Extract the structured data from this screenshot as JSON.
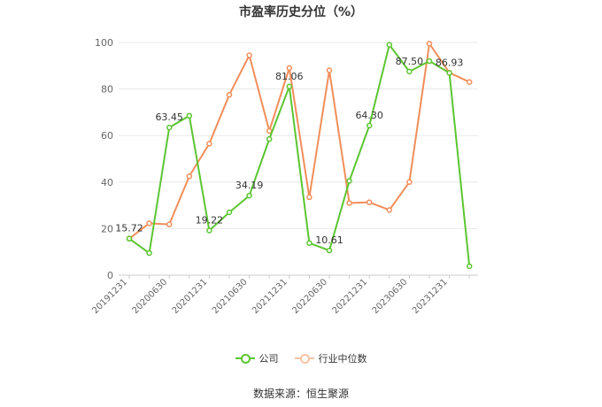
{
  "chart_data": {
    "type": "line",
    "title": "市盈率历史分位（%）",
    "categories": [
      "20191231",
      "",
      "20200630",
      "",
      "20201231",
      "",
      "20210630",
      "",
      "20211231",
      "",
      "20220630",
      "",
      "20221231",
      "",
      "20230630",
      "",
      "20231231",
      ""
    ],
    "ylim": [
      0,
      100
    ],
    "yticks": [
      0,
      20,
      40,
      60,
      80,
      100
    ],
    "grid": true,
    "legend_position": "bottom-center",
    "series": [
      {
        "name": "公司",
        "color": "#5cc532",
        "values": [
          15.72,
          9.5,
          63.45,
          68.5,
          19.22,
          27,
          34.19,
          58.5,
          81.06,
          13.8,
          10.61,
          40.5,
          64.3,
          99,
          87.5,
          92,
          86.93,
          3.8
        ],
        "labels": [
          "15.72",
          "",
          "63.45",
          "",
          "19.22",
          "",
          "34.19",
          "",
          "81.06",
          "",
          "10.61",
          "",
          "64.30",
          "",
          "87.50",
          "",
          "86.93",
          ""
        ]
      },
      {
        "name": "行业中位数",
        "color": "#f18e5a",
        "values": [
          15.7,
          22.3,
          21.8,
          42.5,
          56.5,
          77.5,
          94.5,
          62,
          89,
          33.5,
          88,
          31,
          31.3,
          28,
          40,
          99.5,
          87,
          83
        ]
      }
    ]
  },
  "source": "数据来源：恒生聚源"
}
